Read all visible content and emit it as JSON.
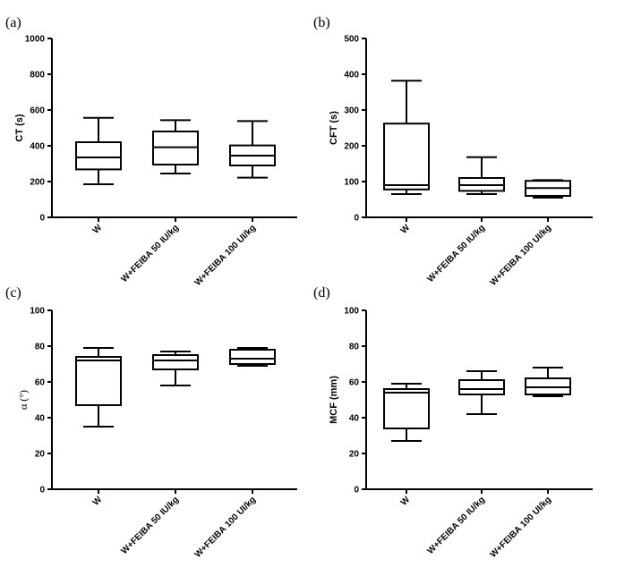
{
  "chart_data": [
    {
      "type": "box",
      "panel_label": "(a)",
      "ylabel": "CT (s)",
      "ylim": [
        0,
        1000
      ],
      "yticks": [
        0,
        200,
        400,
        600,
        800,
        1000
      ],
      "categories": [
        "W",
        "W+FEIBA 50 IU/kg",
        "W+FEIBA 100 UI/kg"
      ],
      "boxes": [
        {
          "min": 185,
          "q1": 268,
          "median": 335,
          "q3": 420,
          "max": 556
        },
        {
          "min": 245,
          "q1": 295,
          "median": 392,
          "q3": 480,
          "max": 543
        },
        {
          "min": 222,
          "q1": 290,
          "median": 345,
          "q3": 402,
          "max": 538
        }
      ]
    },
    {
      "type": "box",
      "panel_label": "(b)",
      "ylabel": "CFT (s)",
      "ylim": [
        0,
        500
      ],
      "yticks": [
        0,
        100,
        200,
        300,
        400,
        500
      ],
      "categories": [
        "W",
        "W+FEIBA 50 IU/kg",
        "W+FEIBA 100 UI/kg"
      ],
      "boxes": [
        {
          "min": 65,
          "q1": 78,
          "median": 90,
          "q3": 262,
          "max": 382
        },
        {
          "min": 65,
          "q1": 74,
          "median": 90,
          "q3": 110,
          "max": 168
        },
        {
          "min": 55,
          "q1": 60,
          "median": 82,
          "q3": 102,
          "max": 104
        }
      ]
    },
    {
      "type": "box",
      "panel_label": "(c)",
      "ylabel": "α (°)",
      "ylim": [
        0,
        100
      ],
      "yticks": [
        0,
        20,
        40,
        60,
        80,
        100
      ],
      "categories": [
        "W",
        "W+FEIBA 50 IU/kg",
        "W+FEIBA 100 UI/kg"
      ],
      "boxes": [
        {
          "min": 35,
          "q1": 47,
          "median": 72,
          "q3": 74,
          "max": 79
        },
        {
          "min": 58,
          "q1": 67,
          "median": 72,
          "q3": 75,
          "max": 77
        },
        {
          "min": 69,
          "q1": 70,
          "median": 73,
          "q3": 78,
          "max": 79
        }
      ]
    },
    {
      "type": "box",
      "panel_label": "(d)",
      "ylabel": "MCF (mm)",
      "ylim": [
        0,
        100
      ],
      "yticks": [
        0,
        20,
        40,
        60,
        80,
        100
      ],
      "categories": [
        "W",
        "W+FEIBA 50 IU/kg",
        "W+FEIBA 100 UI/kg"
      ],
      "boxes": [
        {
          "min": 27,
          "q1": 34,
          "median": 54,
          "q3": 56,
          "max": 59
        },
        {
          "min": 42,
          "q1": 53,
          "median": 56,
          "q3": 61,
          "max": 66
        },
        {
          "min": 52,
          "q1": 53,
          "median": 57,
          "q3": 62,
          "max": 68
        }
      ]
    }
  ]
}
